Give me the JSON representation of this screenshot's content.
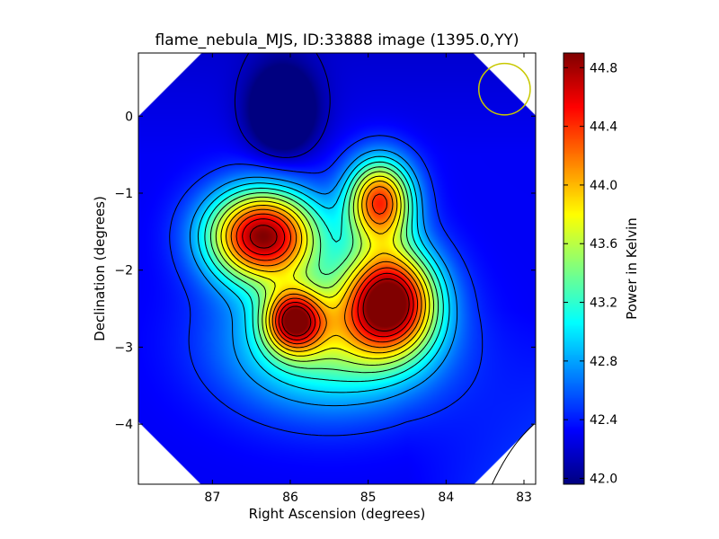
{
  "chart_data": {
    "type": "heatmap",
    "title": "flame_nebula_MJS, ID:33888 image (1395.0,YY)",
    "xlabel": "Right Ascension (degrees)",
    "ylabel": "Declination (degrees)",
    "xlim": [
      87.95,
      82.85
    ],
    "ylim": [
      -4.78,
      0.82
    ],
    "x_ticks": [
      87,
      86,
      85,
      84,
      83
    ],
    "x_tick_labels": [
      "87",
      "86",
      "85",
      "84",
      "83"
    ],
    "y_ticks": [
      0,
      -1,
      -2,
      -3,
      -4
    ],
    "y_tick_labels": [
      "0",
      "−1",
      "−2",
      "−3",
      "−4"
    ],
    "colorbar": {
      "label": "Power in Kelvin",
      "colormap": "jet",
      "range": [
        41.96,
        44.9
      ],
      "ticks": [
        42.0,
        42.4,
        42.8,
        43.2,
        43.6,
        44.0,
        44.4,
        44.8
      ],
      "tick_labels": [
        "42.0",
        "42.4",
        "42.8",
        "43.2",
        "43.6",
        "44.0",
        "44.4",
        "44.8"
      ]
    },
    "background_level": 42.3,
    "sources": [
      {
        "ra": 86.35,
        "dec": -1.55,
        "peak": 44.85,
        "sigma_ra": 0.5,
        "sigma_dec": 0.42
      },
      {
        "ra": 84.72,
        "dec": -2.38,
        "peak": 44.75,
        "sigma_ra": 0.42,
        "sigma_dec": 0.48
      },
      {
        "ra": 84.85,
        "dec": -1.1,
        "peak": 44.35,
        "sigma_ra": 0.3,
        "sigma_dec": 0.38
      },
      {
        "ra": 85.95,
        "dec": -2.65,
        "peak": 44.2,
        "sigma_ra": 0.26,
        "sigma_dec": 0.28
      },
      {
        "ra": 85.5,
        "dec": -2.95,
        "peak": 43.4,
        "sigma_ra": 0.9,
        "sigma_dec": 0.6
      },
      {
        "ra": 86.1,
        "dec": 0.05,
        "peak": 41.5,
        "sigma_ra": 0.3,
        "sigma_dec": 0.4
      }
    ],
    "contour_levels": [
      42.15,
      42.45,
      42.75,
      42.95,
      43.15,
      43.35,
      43.55,
      43.75,
      43.95,
      44.15,
      44.35,
      44.55,
      44.75
    ],
    "beam_marker": {
      "ra": 83.25,
      "dec": 0.35,
      "radius_deg": 0.33,
      "color": "#c8c800"
    },
    "coverage": "octagonal",
    "grid": false
  }
}
